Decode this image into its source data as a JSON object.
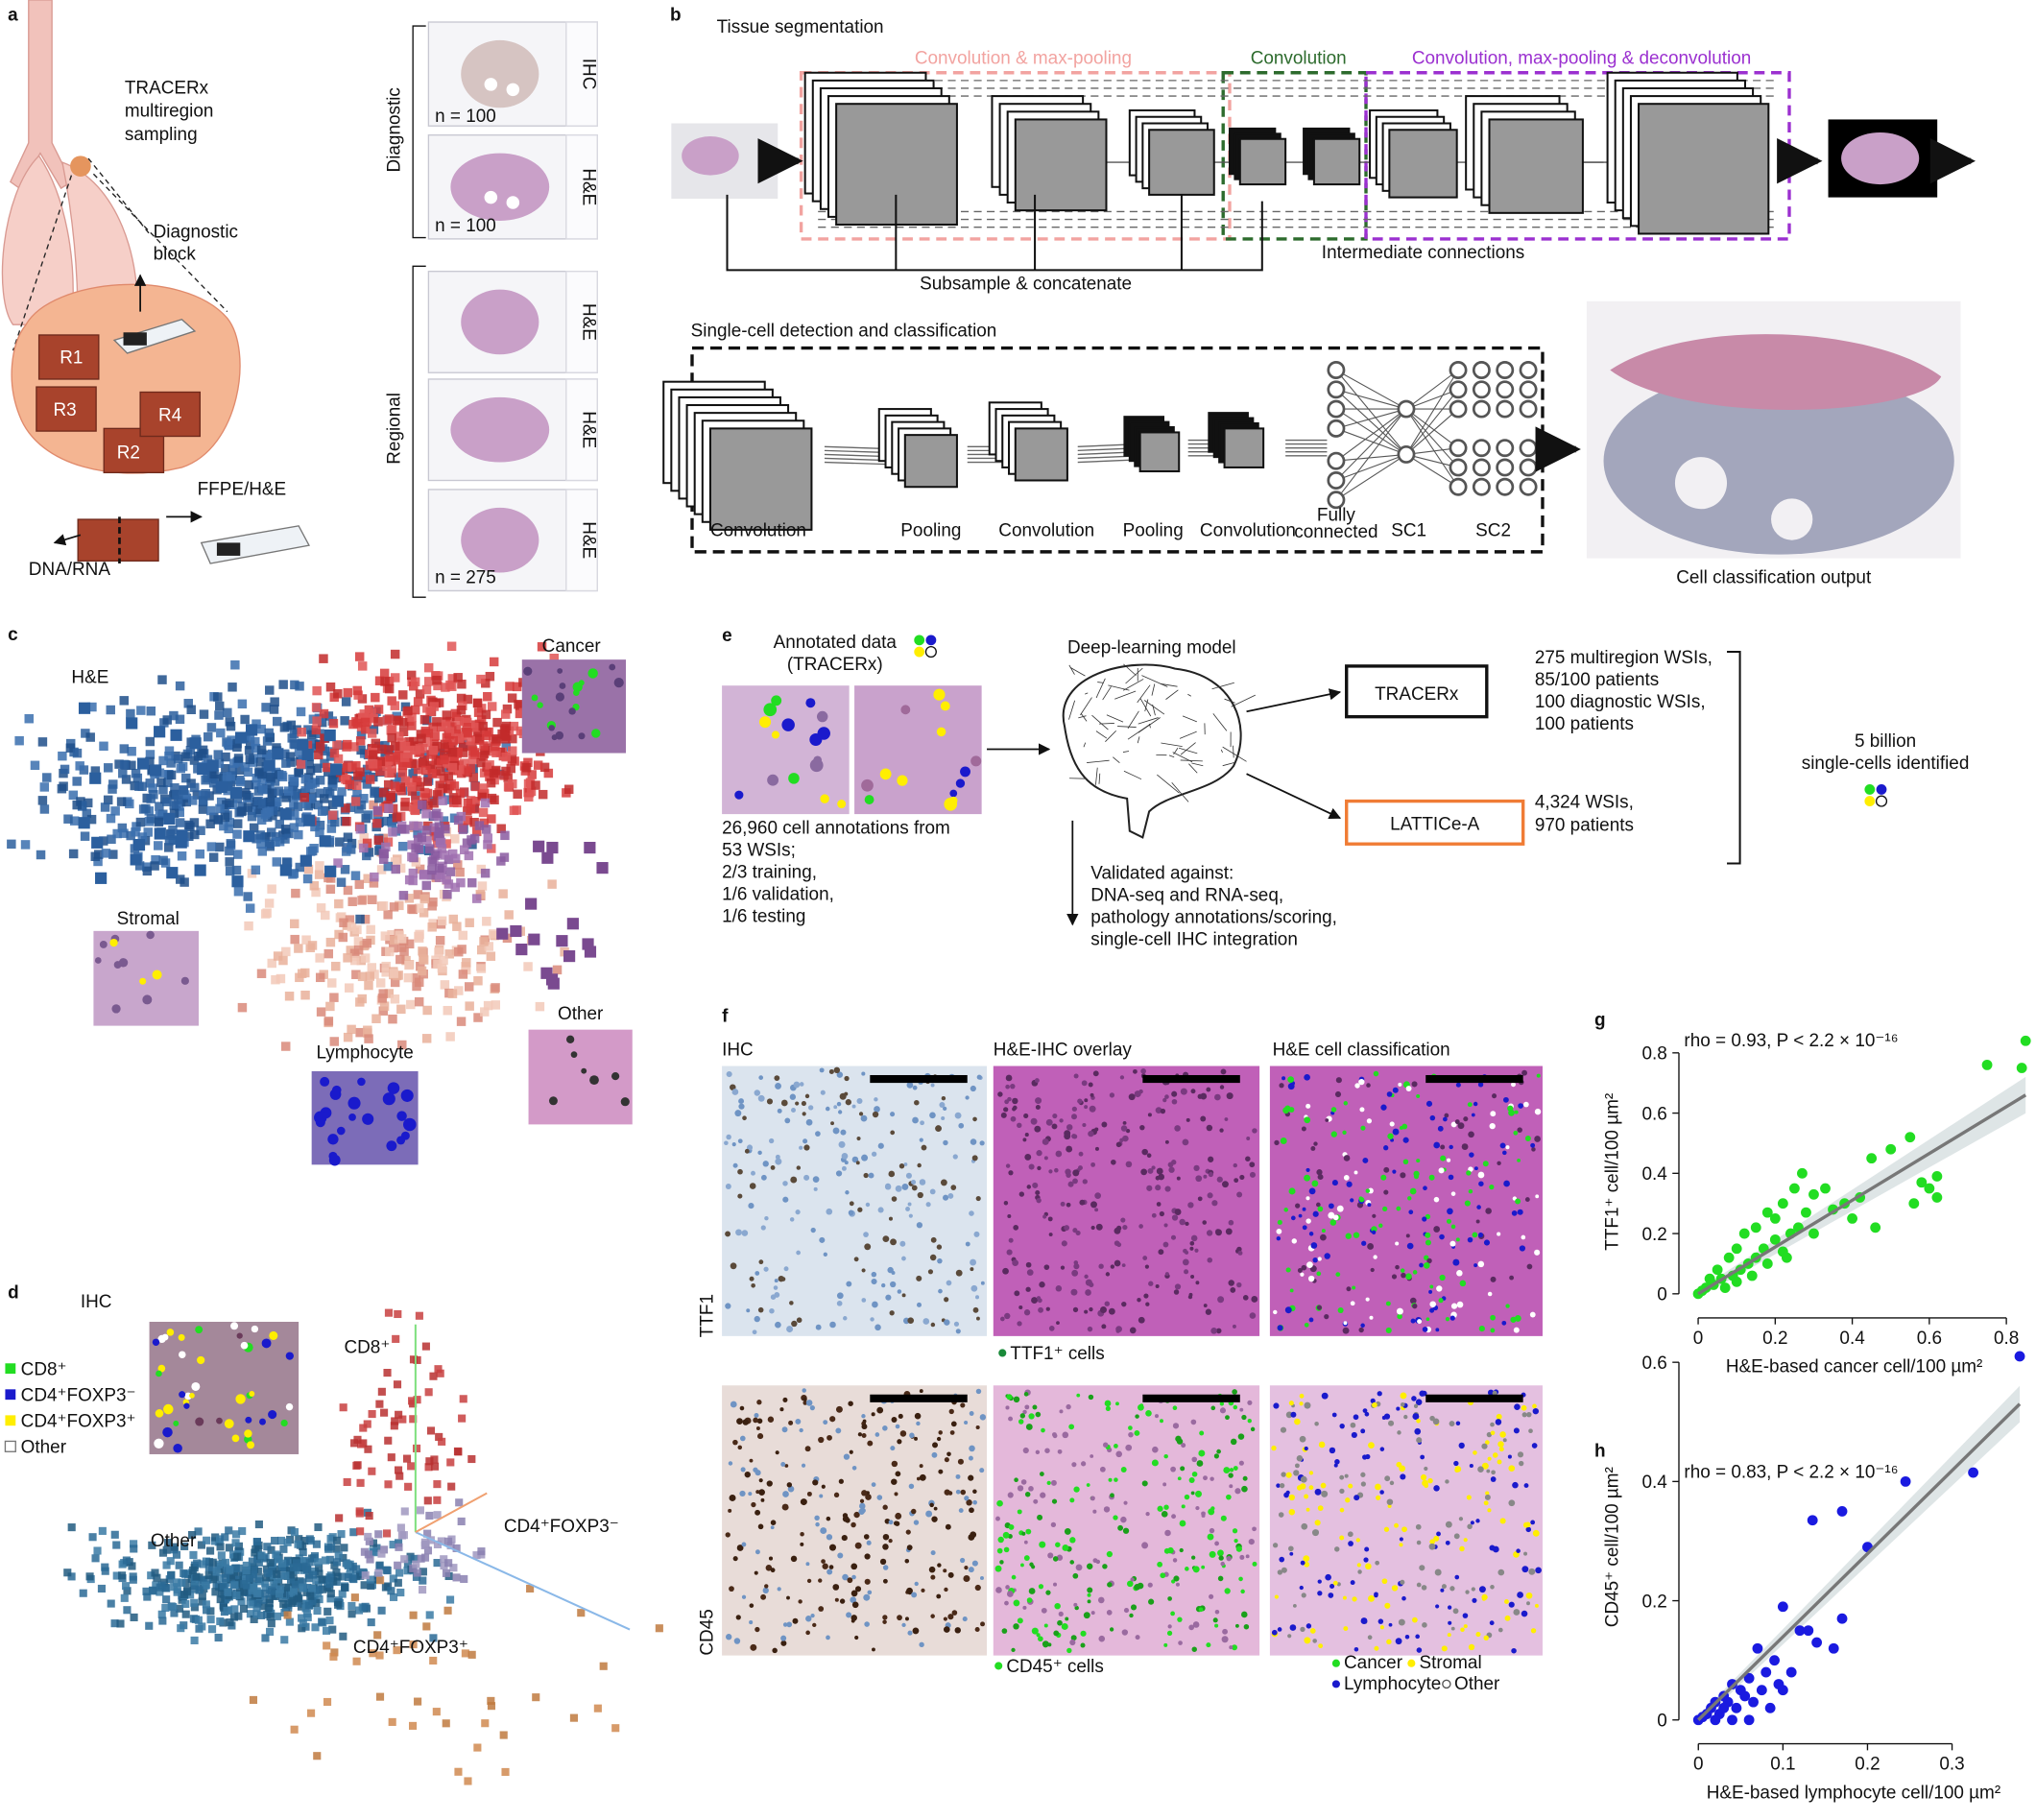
{
  "panels": {
    "a": {
      "label": "a",
      "lung_lines": [
        "TRACERx",
        "multiregion",
        "sampling"
      ],
      "block_lines": [
        "Diagnostic",
        "block"
      ],
      "regions": [
        "R1",
        "R3",
        "R2",
        "R4"
      ],
      "ffpe": "FFPE/H&E",
      "dna": "DNA/RNA",
      "groups": [
        "Diagnostic",
        "Regional"
      ],
      "slide_labels": [
        "IHC",
        "H&E",
        "H&E",
        "H&E",
        "H&E"
      ],
      "n_labels": [
        "n = 100",
        "n = 100",
        "n = 275"
      ]
    },
    "b": {
      "label": "b",
      "seg_title": "Tissue segmentation",
      "section_labels": [
        "Convolution & max-pooling",
        "Convolution",
        "Convolution, max-pooling & deconvolution"
      ],
      "subsample": "Subsample & concatenate",
      "intermediate": "Intermediate connections",
      "cell_title": "Single-cell detection and classification",
      "layer_labels": [
        "Convolution",
        "Pooling",
        "Convolution",
        "Pooling",
        "Convolution",
        "SC1",
        "SC2"
      ],
      "fc_lines": [
        "Fully",
        "connected"
      ],
      "output_label": "Cell classification output"
    },
    "c": {
      "label": "c",
      "title": "H&E",
      "insets": [
        "Cancer",
        "Stromal",
        "Lymphocyte",
        "Other"
      ]
    },
    "d": {
      "label": "d",
      "title": "IHC",
      "legend": [
        "CD8⁺",
        "CD4⁺FOXP3⁻",
        "CD4⁺FOXP3⁺",
        "Other"
      ],
      "axis_labels": [
        "CD8⁺",
        "CD4⁺FOXP3⁻",
        "CD4⁺FOXP3⁺",
        "Other"
      ]
    },
    "e": {
      "label": "e",
      "annotated_lines": [
        "Annotated data",
        "(TRACERx)"
      ],
      "annotation_lines": [
        "26,960 cell annotations from",
        "53 WSIs;",
        "2/3 training,",
        "1/6 validation,",
        "1/6 testing"
      ],
      "model": "Deep-learning model",
      "tracerx": "TRACERx",
      "lattice": "LATTICe-A",
      "tracerx_lines": [
        "275 multiregion WSIs,",
        "85/100 patients",
        "100 diagnostic WSIs,",
        "100 patients"
      ],
      "lattice_lines": [
        "4,324 WSIs,",
        "970 patients"
      ],
      "total_lines": [
        "5 billion",
        "single-cells identified"
      ],
      "validated_lines": [
        "Validated against:",
        "DNA-seq and RNA-seq,",
        "pathology annotations/scoring,",
        "single-cell IHC integration"
      ]
    },
    "f": {
      "label": "f",
      "headers": [
        "IHC",
        "H&E-IHC overlay",
        "H&E cell classification"
      ],
      "rows": [
        "TTF1",
        "CD45"
      ],
      "marker_labels": [
        "TTF1⁺ cells",
        "CD45⁺ cells"
      ],
      "legend": [
        "Cancer",
        "Stromal",
        "Lymphocyte",
        "Other"
      ]
    }
  },
  "chart_data": [
    {
      "type": "scatter",
      "panel": "g",
      "annotation": "rho = 0.93, P < 2.2 × 10⁻¹⁶",
      "xlabel": "H&E-based cancer cell/100 µm²",
      "ylabel": "TTF1⁺ cell/100 µm²",
      "color": "#22dd22",
      "xlim": [
        -0.05,
        0.86
      ],
      "ylim": [
        -0.08,
        0.89
      ],
      "xticks": [
        0,
        0.2,
        0.4,
        0.6,
        0.8
      ],
      "yticks": [
        0,
        0.2,
        0.4,
        0.6,
        0.8
      ],
      "x": [
        0.85,
        0.84,
        0.75,
        0.62,
        0.6,
        0.58,
        0.55,
        0.5,
        0.45,
        0.42,
        0.33,
        0.3,
        0.28,
        0.27,
        0.25,
        0.22,
        0.2,
        0.18,
        0.15,
        0.12,
        0.1,
        0.08,
        0.05,
        0.03,
        0.02,
        0.01,
        0,
        0.04,
        0.06,
        0.09,
        0.11,
        0.13,
        0.15,
        0.17,
        0.2,
        0.22,
        0.24,
        0.26,
        0.3,
        0.35,
        0.38,
        0.4,
        0.46,
        0.62,
        0.56,
        0.07,
        0.1,
        0.14,
        0.18,
        0.23
      ],
      "y": [
        0.84,
        0.75,
        0.76,
        0.39,
        0.35,
        0.37,
        0.52,
        0.48,
        0.45,
        0.32,
        0.35,
        0.33,
        0.27,
        0.4,
        0.35,
        0.3,
        0.25,
        0.27,
        0.22,
        0.2,
        0.15,
        0.12,
        0.08,
        0.05,
        0.02,
        0.01,
        0,
        0.03,
        0.05,
        0.06,
        0.08,
        0.1,
        0.12,
        0.15,
        0.18,
        0.14,
        0.2,
        0.22,
        0.2,
        0.28,
        0.3,
        0.25,
        0.22,
        0.32,
        0.3,
        0.02,
        0.04,
        0.06,
        0.1,
        0.12
      ],
      "fit": {
        "x": [
          0,
          0.85
        ],
        "y": [
          0,
          0.66
        ]
      },
      "fit_color": "#777777"
    },
    {
      "type": "scatter",
      "panel": "h",
      "annotation": "rho = 0.83, P < 2.2 × 10⁻¹⁶",
      "xlabel": "H&E-based lymphocyte cell/100 µm²",
      "ylabel": "CD45⁺ cell/100 µm²",
      "color": "#1a1ae0",
      "xlim": [
        -0.023,
        0.39
      ],
      "ylim": [
        -0.04,
        0.62
      ],
      "xticks": [
        0,
        0.1,
        0.2,
        0.3
      ],
      "yticks": [
        0,
        0.2,
        0.4,
        0.6
      ],
      "x": [
        0.38,
        0.325,
        0.245,
        0.2,
        0.17,
        0.135,
        0.17,
        0.1,
        0.12,
        0.13,
        0.09,
        0.08,
        0.07,
        0.06,
        0.05,
        0.04,
        0.03,
        0.02,
        0.01,
        0,
        0.015,
        0.025,
        0.035,
        0.045,
        0.055,
        0.065,
        0.075,
        0.085,
        0.095,
        0.11,
        0.06,
        0.04,
        0.14,
        0.16,
        0.1,
        0.02,
        0.005,
        0.03
      ],
      "y": [
        0.61,
        0.415,
        0.4,
        0.29,
        0.35,
        0.335,
        0.17,
        0.19,
        0.15,
        0.15,
        0.1,
        0.08,
        0.12,
        0.07,
        0.05,
        0.06,
        0.04,
        0.03,
        0.01,
        0,
        0.02,
        0.01,
        0.03,
        0.02,
        0.04,
        0.03,
        0.05,
        0.02,
        0.06,
        0.08,
        0,
        0,
        0.13,
        0.12,
        0.05,
        0,
        0.005,
        0.02
      ],
      "fit": {
        "x": [
          0,
          0.38
        ],
        "y": [
          0,
          0.53
        ]
      },
      "fit_color": "#777777"
    }
  ]
}
